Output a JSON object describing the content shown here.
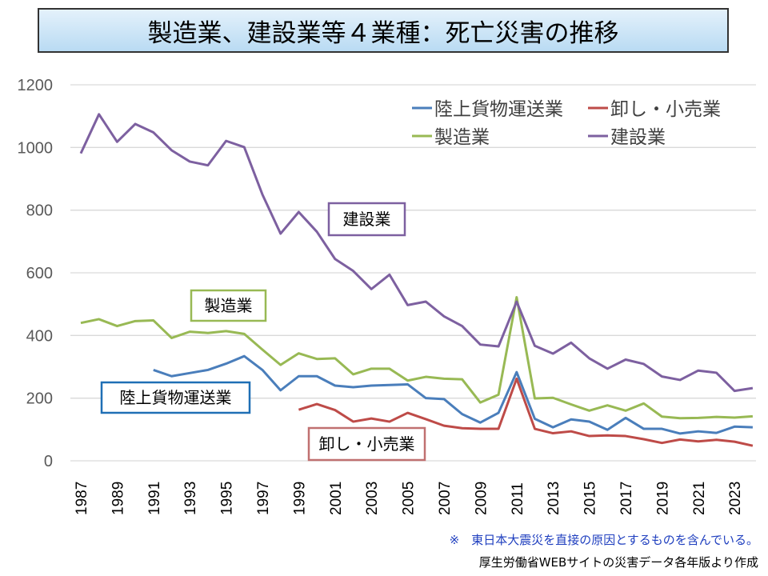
{
  "chart_data": {
    "type": "line",
    "title": "製造業、建設業等４業種：死亡災害の推移",
    "ylim": [
      0,
      1200
    ],
    "yticks": [
      0,
      200,
      400,
      600,
      800,
      1000,
      1200
    ],
    "xticks": [
      1987,
      1989,
      1991,
      1993,
      1995,
      1997,
      1999,
      2001,
      2003,
      2005,
      2007,
      2009,
      2011,
      2013,
      2015,
      2017,
      2019,
      2021,
      2023
    ],
    "grid": true,
    "legend": "top-right",
    "series": [
      {
        "name": "陸上貨物運送業",
        "color": "#4a7ebb",
        "start": 1991,
        "values": [
          290,
          270,
          280,
          290,
          310,
          334,
          290,
          225,
          270,
          270,
          240,
          235,
          240,
          242,
          244,
          200,
          197,
          149,
          122,
          153,
          283,
          134,
          107,
          132,
          125,
          99,
          137,
          102,
          102,
          87,
          94,
          89,
          109,
          107
        ]
      },
      {
        "name": "卸し・小売業",
        "color": "#be4b48",
        "start": 1999,
        "values": [
          163,
          181,
          162,
          125,
          135,
          125,
          153,
          133,
          112,
          104,
          102,
          102,
          262,
          102,
          88,
          94,
          79,
          81,
          79,
          69,
          57,
          68,
          62,
          67,
          61,
          48
        ]
      },
      {
        "name": "製造業",
        "color": "#98b954",
        "start": 1987,
        "values": [
          440,
          452,
          430,
          446,
          448,
          392,
          412,
          408,
          414,
          405,
          355,
          306,
          343,
          325,
          327,
          276,
          294,
          294,
          256,
          268,
          262,
          260,
          186,
          211,
          522,
          199,
          201,
          180,
          160,
          177,
          160,
          183,
          141,
          136,
          137,
          140,
          138,
          142
        ]
      },
      {
        "name": "建設業",
        "color": "#7d60a0",
        "start": 1987,
        "values": [
          981,
          1106,
          1018,
          1075,
          1048,
          991,
          955,
          943,
          1021,
          1001,
          850,
          725,
          794,
          731,
          644,
          606,
          548,
          594,
          497,
          508,
          461,
          430,
          371,
          365,
          508,
          367,
          342,
          377,
          327,
          294,
          323,
          309,
          269,
          258,
          288,
          281,
          223,
          232
        ]
      }
    ],
    "callouts": {
      "construction": "建設業",
      "manufacturing": "製造業",
      "freight": "陸上貨物運送業",
      "retail": "卸し・小売業"
    }
  },
  "notes": {
    "quake": "※　東日本大震災を直接の原因とするものを含んでいる。",
    "source": "厚生労働省WEBサイトの災害データ各年版より作成"
  }
}
